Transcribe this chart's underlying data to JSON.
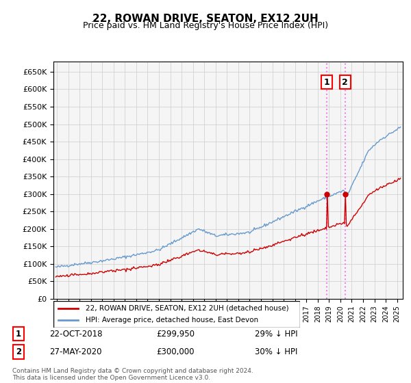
{
  "title": "22, ROWAN DRIVE, SEATON, EX12 2UH",
  "subtitle": "Price paid vs. HM Land Registry's House Price Index (HPI)",
  "legend_label_red": "22, ROWAN DRIVE, SEATON, EX12 2UH (detached house)",
  "legend_label_blue": "HPI: Average price, detached house, East Devon",
  "footer": "Contains HM Land Registry data © Crown copyright and database right 2024.\nThis data is licensed under the Open Government Licence v3.0.",
  "transactions": [
    {
      "id": 1,
      "date": "22-OCT-2018",
      "price": 299950,
      "pct": "29% ↓ HPI",
      "year": 2018.81
    },
    {
      "id": 2,
      "date": "27-MAY-2020",
      "price": 300000,
      "pct": "30% ↓ HPI",
      "year": 2020.41
    }
  ],
  "vline_color": "#ee82ee",
  "vline_style": ":",
  "red_color": "#cc0000",
  "blue_color": "#6699cc",
  "point_color": "#cc0000",
  "background_color": "#ffffff",
  "grid_color": "#cccccc",
  "ylim": [
    0,
    680000
  ],
  "xlim_start": 1995.0,
  "xlim_end": 2025.5,
  "ylabel_format": "£{0}K"
}
